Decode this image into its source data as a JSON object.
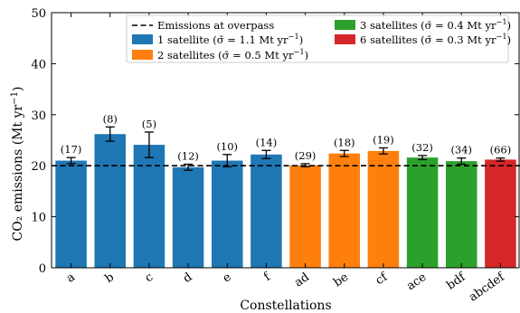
{
  "chart_data": {
    "type": "bar",
    "title": "",
    "xlabel": "Constellations",
    "ylabel": "CO₂ emissions (Mt yr⁻¹)",
    "ylim": [
      0,
      50
    ],
    "yticks": [
      0,
      10,
      20,
      30,
      40,
      50
    ],
    "reference_line": {
      "label": "Emissions at overpass",
      "value": 20
    },
    "legend_placement": "top-right",
    "groups": [
      {
        "name": "1 satellite (σ̄ = 1.1 Mt yr⁻¹)",
        "color": "#1f77b4"
      },
      {
        "name": "2 satellites (σ̄ = 0.5 Mt yr⁻¹)",
        "color": "#ff7f0e"
      },
      {
        "name": "3 satellites (σ̄ = 0.4 Mt yr⁻¹)",
        "color": "#2ca02c"
      },
      {
        "name": "6 satellites (σ̄ = 0.3 Mt yr⁻¹)",
        "color": "#d62728"
      }
    ],
    "categories": [
      "a",
      "b",
      "c",
      "d",
      "e",
      "f",
      "ad",
      "be",
      "cf",
      "ace",
      "bdf",
      "abcdef"
    ],
    "values": [
      21.0,
      26.2,
      24.1,
      19.7,
      21.0,
      22.2,
      20.1,
      22.4,
      22.9,
      21.6,
      20.9,
      21.2
    ],
    "errors": [
      0.6,
      1.4,
      2.5,
      0.6,
      1.2,
      0.8,
      0.3,
      0.6,
      0.6,
      0.4,
      0.6,
      0.3
    ],
    "bar_group": [
      0,
      0,
      0,
      0,
      0,
      0,
      1,
      1,
      1,
      2,
      2,
      3
    ],
    "counts": [
      "(17)",
      "(8)",
      "(5)",
      "(12)",
      "(10)",
      "(14)",
      "(29)",
      "(18)",
      "(19)",
      "(32)",
      "(34)",
      "(66)"
    ]
  }
}
